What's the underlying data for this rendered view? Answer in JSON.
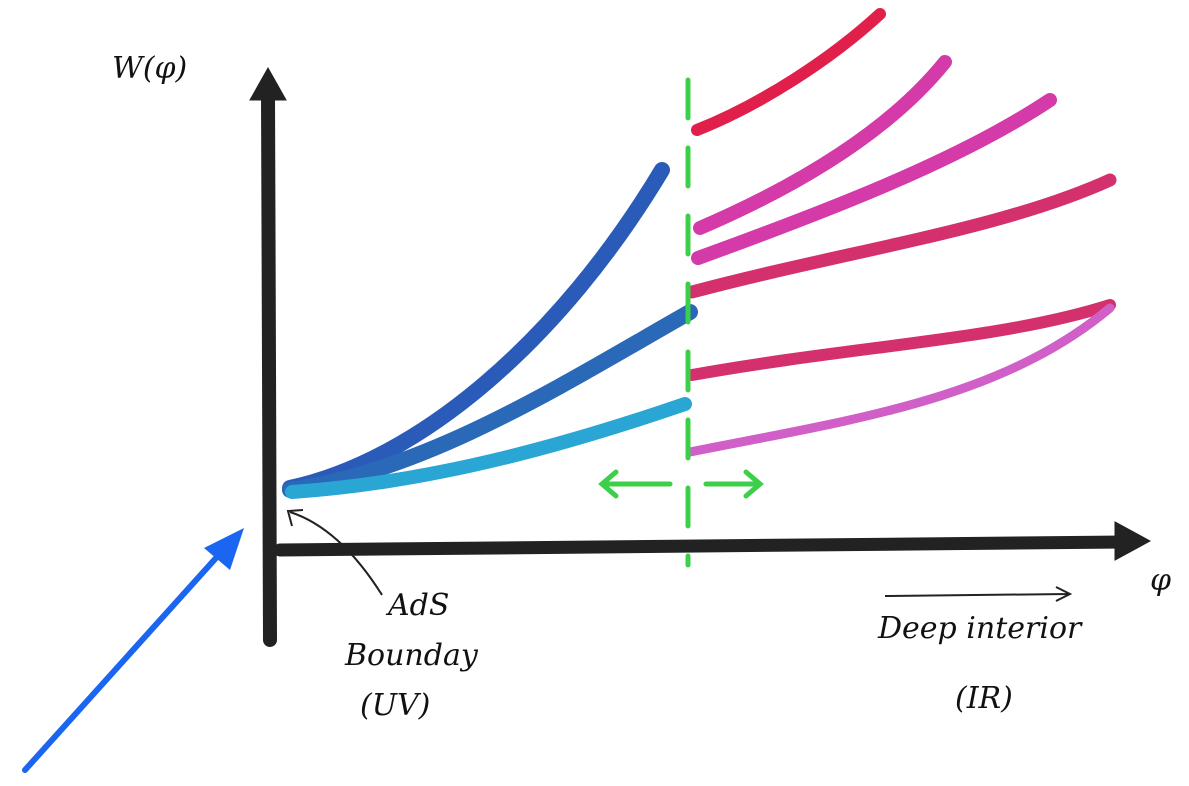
{
  "axes": {
    "y_label": "W(φ)",
    "x_label": "φ"
  },
  "annotations": {
    "uv": {
      "line1": "AdS",
      "line2": "Bounday",
      "line3": "(UV)"
    },
    "ir": {
      "line1": "Deep interior",
      "line2": "(IR)"
    }
  }
}
